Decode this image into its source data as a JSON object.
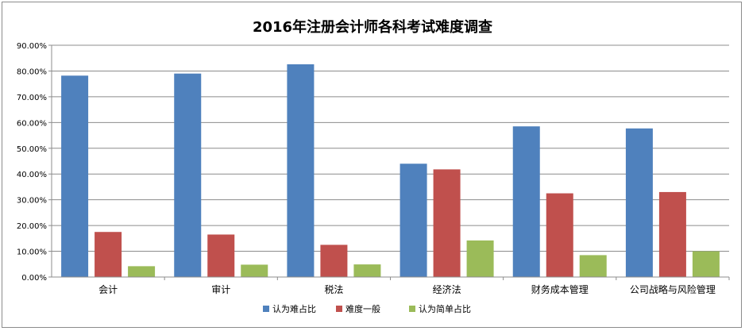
{
  "chart_data": {
    "type": "bar",
    "title": "2016年注册会计师各科考试难度调查",
    "categories": [
      "会计",
      "审计",
      "税法",
      "经济法",
      "财务成本管理",
      "公司战略与风险管理"
    ],
    "series": [
      {
        "name": "认为难占比",
        "color": "#4f81bd",
        "values": [
          78.2,
          79.0,
          82.6,
          44.0,
          58.5,
          57.7
        ]
      },
      {
        "name": "难度一般",
        "color": "#c0504d",
        "values": [
          17.5,
          16.5,
          12.5,
          41.8,
          32.5,
          33.0
        ]
      },
      {
        "name": "认为简单占比",
        "color": "#9bbb59",
        "values": [
          4.2,
          4.8,
          4.9,
          14.2,
          8.5,
          10.0
        ]
      }
    ],
    "yticks": [
      "0.00%",
      "10.00%",
      "20.00%",
      "30.00%",
      "40.00%",
      "50.00%",
      "60.00%",
      "70.00%",
      "80.00%",
      "90.00%"
    ],
    "ylim": [
      0,
      90
    ],
    "grid": true,
    "legend_position": "bottom"
  }
}
